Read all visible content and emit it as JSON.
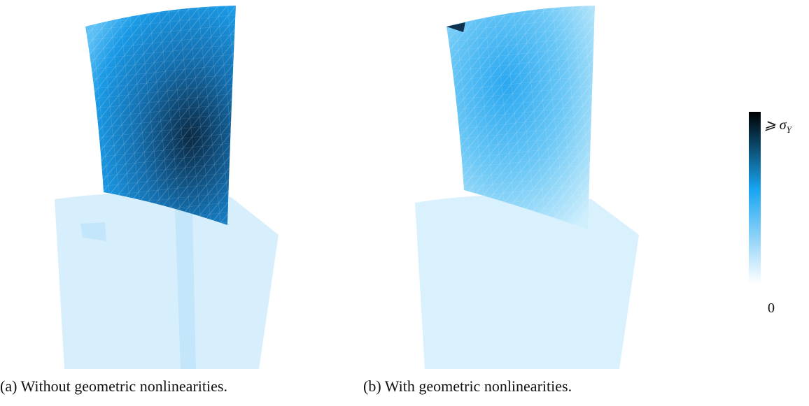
{
  "figure": {
    "panels": [
      {
        "caption": "(a) Without geometric nonlinearities."
      },
      {
        "caption": "(b) With geometric nonlinearities."
      }
    ],
    "colorbar": {
      "top_label": {
        "symbol": "⩾ σ",
        "subscript": "Y"
      },
      "bottom_label": "0"
    }
  }
}
